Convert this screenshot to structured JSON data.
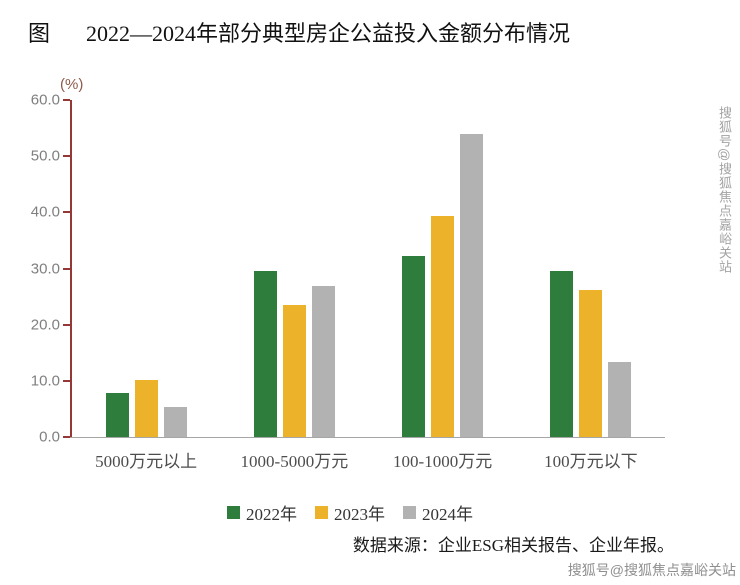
{
  "title": {
    "prefix": "图",
    "text": "2022—2024年部分典型房企公益投入金额分布情况"
  },
  "chart_data": {
    "type": "bar",
    "categories": [
      "5000万元以上",
      "1000-5000万元",
      "100-1000万元",
      "100万元以下"
    ],
    "series": [
      {
        "name": "2022年",
        "color": "#2e7d3c",
        "values": [
          7.8,
          29.5,
          32.3,
          29.5
        ]
      },
      {
        "name": "2023年",
        "color": "#ecb32a",
        "values": [
          10.2,
          23.5,
          39.4,
          26.2
        ]
      },
      {
        "name": "2024年",
        "color": "#b2b2b2",
        "values": [
          5.3,
          26.8,
          53.9,
          13.3
        ]
      }
    ],
    "ylabel": "(%)",
    "xlabel": "",
    "ylim": [
      0,
      60
    ],
    "yticks": [
      "60.0",
      "50.0",
      "40.0",
      "30.0",
      "20.0",
      "10.0",
      "0.0"
    ],
    "legend_position": "bottom",
    "grid": false,
    "axis_color": "#953735",
    "baseline_color": "#a6a6a6"
  },
  "source_note": "数据来源：企业ESG相关报告、企业年报。",
  "watermark": "搜狐号@搜狐焦点嘉峪关站"
}
